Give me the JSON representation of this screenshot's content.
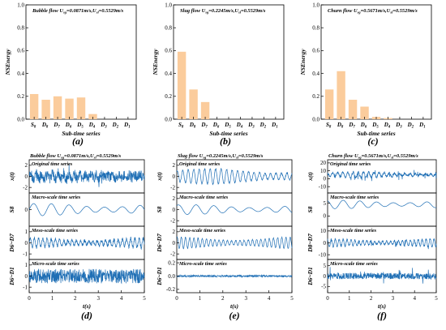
{
  "colors": {
    "bar": "#fbcc9c",
    "line": "#1f6fb5"
  },
  "panels_top": [
    {
      "label": "(a)",
      "title": "Bubble flow U_sg=0.0871m/s,U_sl=0.5529m/s",
      "title_main": "Bubble flow U",
      "title_mid": "=0.0871m/s,U",
      "title_end": "=0.5529m/s",
      "ylabel": "NSEnergy",
      "xlabel": "Sub-time series",
      "yticks": [
        "0.0",
        "0.2",
        "0.4",
        "0.6",
        "0.8",
        "1.0"
      ]
    },
    {
      "label": "(b)",
      "title": "Slug flow U_sg=0.2245m/s,U_sl=0.5529m/s",
      "title_main": "Slug flow U",
      "title_mid": "=0.2245m/s,U",
      "title_end": "=0.5529m/s",
      "ylabel": "NSEnergy",
      "xlabel": "Sub-time series",
      "yticks": [
        "0.0",
        "0.2",
        "0.4",
        "0.6",
        "0.8",
        "1.0"
      ]
    },
    {
      "label": "(c)",
      "title": "Churn flow U_sg=0.5671m/s,U_sl=0.5529m/s",
      "title_main": "Churn flow U",
      "title_mid": "=0.5671m/s,U",
      "title_end": "=0.5529m/s",
      "ylabel": "NSEnergy",
      "xlabel": "Sub-time series",
      "yticks": [
        "0.0",
        "0.2",
        "0.4",
        "0.6",
        "0.8",
        "1.0"
      ]
    }
  ],
  "panels_bottom": [
    {
      "label": "(d)",
      "title_main": "Bubble flow U",
      "title_mid": "=0.0871m/s,U",
      "title_end": "=0.5529m/s",
      "xlabel": "t(s)",
      "xticks": [
        "0",
        "1",
        "2",
        "3",
        "4",
        "5"
      ],
      "rows": [
        {
          "title": "Original time series",
          "ylabel": "x(t)",
          "yticks": [
            "-2",
            "0",
            "2"
          ]
        },
        {
          "title": "Macro-scale time series",
          "ylabel": "S8",
          "yticks": [
            "0"
          ]
        },
        {
          "title": "Meso-scale time series",
          "ylabel": "D6~D7",
          "yticks": [
            "-1",
            "0",
            "1"
          ]
        },
        {
          "title": "Micro-scale time series",
          "ylabel": "D6~D1",
          "yticks": [
            "-1",
            "0",
            "1"
          ]
        }
      ]
    },
    {
      "label": "(e)",
      "title_main": "Slug flow U",
      "title_mid": "=0.2245m/s,U",
      "title_end": "=0.5529m/s",
      "xlabel": "t(s)",
      "xticks": [
        "0",
        "1",
        "2",
        "3",
        "4",
        "5"
      ],
      "rows": [
        {
          "title": "Original time series",
          "ylabel": "x(t)",
          "yticks": [
            "-2",
            "0",
            "2"
          ]
        },
        {
          "title": "Macro-scale time series",
          "ylabel": "S8",
          "yticks": [
            "-2",
            "0",
            "2"
          ]
        },
        {
          "title": "Meso-scale time series",
          "ylabel": "D6~D7",
          "yticks": [
            "-2",
            "0",
            "2"
          ]
        },
        {
          "title": "Micro-scale time series",
          "ylabel": "D6~D1",
          "yticks": [
            "-0.2",
            "0.0",
            "0.2"
          ]
        }
      ]
    },
    {
      "label": "(f)",
      "title_main": "Churn flow U",
      "title_mid": "=0.5671m/s,U",
      "title_end": "=0.5529m/s",
      "xlabel": "t(s)",
      "xticks": [
        "0",
        "1",
        "2",
        "3",
        "4",
        "5"
      ],
      "rows": [
        {
          "title": "Original time series",
          "ylabel": "x(t)",
          "yticks": [
            "-10",
            "0",
            "10",
            "20"
          ]
        },
        {
          "title": "Macro-scale time series",
          "ylabel": "S8",
          "yticks": [
            "0",
            "5"
          ]
        },
        {
          "title": "Meso-scale time series",
          "ylabel": "D8~D7",
          "yticks": [
            "-10",
            "0",
            "10"
          ]
        },
        {
          "title": "Micro-scale time series",
          "ylabel": "D6~D1",
          "yticks": [
            "-5",
            "0",
            "5"
          ]
        }
      ]
    }
  ],
  "chart_data": [
    {
      "type": "bar",
      "title": "Bubble flow U_sg=0.0871m/s,U_sl=0.5529m/s",
      "xlabel": "Sub-time series",
      "ylabel": "NSEnergy",
      "categories": [
        "S8",
        "D8",
        "D7",
        "D6",
        "D5",
        "D4",
        "D3",
        "D2",
        "D1"
      ],
      "values": [
        0.22,
        0.17,
        0.2,
        0.18,
        0.19,
        0.045,
        0.0,
        0.0,
        0.0
      ],
      "ylim": [
        0,
        1.0
      ]
    },
    {
      "type": "bar",
      "title": "Slug flow U_sg=0.2245m/s,U_sl=0.5529m/s",
      "xlabel": "Sub-time series",
      "ylabel": "NSEnergy",
      "categories": [
        "S8",
        "D8",
        "D7",
        "D6",
        "D5",
        "D4",
        "D3",
        "D2",
        "D1"
      ],
      "values": [
        0.59,
        0.26,
        0.15,
        0.0,
        0.0,
        0.0,
        0.0,
        0.0,
        0.0
      ],
      "ylim": [
        0,
        1.0
      ]
    },
    {
      "type": "bar",
      "title": "Churn flow U_sg=0.5671m/s,U_sl=0.5529m/s",
      "xlabel": "Sub-time series",
      "ylabel": "NSEnergy",
      "categories": [
        "S8",
        "D8",
        "D7",
        "D6",
        "D5",
        "D4",
        "D3",
        "D2",
        "D1"
      ],
      "values": [
        0.26,
        0.42,
        0.17,
        0.11,
        0.02,
        0.01,
        0.0,
        0.0,
        0.0
      ],
      "ylim": [
        0,
        1.0
      ]
    },
    {
      "type": "line",
      "title": "Bubble flow U_sg=0.0871m/s,U_sl=0.5529m/s",
      "xlabel": "t(s)",
      "xlim": [
        0,
        5
      ],
      "series": [
        {
          "name": "Original time series",
          "amp": 2.4,
          "ylim": [
            -3,
            3
          ],
          "noise": 0.8,
          "wave": 0.4,
          "spikes": 0.3
        },
        {
          "name": "Macro-scale time series",
          "amp": 1.0,
          "ylim": [
            -1.5,
            1.5
          ],
          "noise": 0.0,
          "wave": 1.0,
          "spikes": 0.0
        },
        {
          "name": "Meso-scale time series",
          "amp": 1.0,
          "ylim": [
            -1.5,
            1.5
          ],
          "noise": 0.3,
          "wave": 0.8,
          "spikes": 0.1
        },
        {
          "name": "Micro-scale time series",
          "amp": 1.3,
          "ylim": [
            -1.5,
            1.5
          ],
          "noise": 1.0,
          "wave": 0.0,
          "spikes": 0.2
        }
      ]
    },
    {
      "type": "line",
      "title": "Slug flow U_sg=0.2245m/s,U_sl=0.5529m/s",
      "xlabel": "t(s)",
      "xlim": [
        0,
        5
      ],
      "series": [
        {
          "name": "Original time series",
          "amp": 2.5,
          "ylim": [
            -3,
            3
          ],
          "noise": 0.1,
          "wave": 1.0,
          "spikes": 0.05
        },
        {
          "name": "Macro-scale time series",
          "amp": 1.6,
          "ylim": [
            -3,
            3
          ],
          "noise": 0.0,
          "wave": 1.0,
          "spikes": 0.0
        },
        {
          "name": "Meso-scale time series",
          "amp": 2.0,
          "ylim": [
            -3,
            3
          ],
          "noise": 0.1,
          "wave": 1.0,
          "spikes": 0.0
        },
        {
          "name": "Micro-scale time series",
          "amp": 0.03,
          "ylim": [
            -0.25,
            0.25
          ],
          "noise": 1.0,
          "wave": 0.0,
          "spikes": 0.0
        }
      ]
    },
    {
      "type": "line",
      "title": "Churn flow U_sg=0.5671m/s,U_sl=0.5529m/s",
      "xlabel": "t(s)",
      "xlim": [
        0,
        5
      ],
      "series": [
        {
          "name": "Original time series",
          "amp": 10,
          "ylim": [
            -18,
            24
          ],
          "noise": 0.3,
          "wave": 0.6,
          "spikes": 0.6
        },
        {
          "name": "Macro-scale time series",
          "amp": 3.0,
          "ylim": [
            -4,
            9
          ],
          "noise": 0.0,
          "wave": 1.0,
          "spikes": 0.0
        },
        {
          "name": "Meso-scale time series",
          "amp": 8,
          "ylim": [
            -14,
            14
          ],
          "noise": 0.2,
          "wave": 0.8,
          "spikes": 0.3
        },
        {
          "name": "Micro-scale time series",
          "amp": 5,
          "ylim": [
            -8,
            8
          ],
          "noise": 0.6,
          "wave": 0.0,
          "spikes": 0.6
        }
      ]
    }
  ]
}
